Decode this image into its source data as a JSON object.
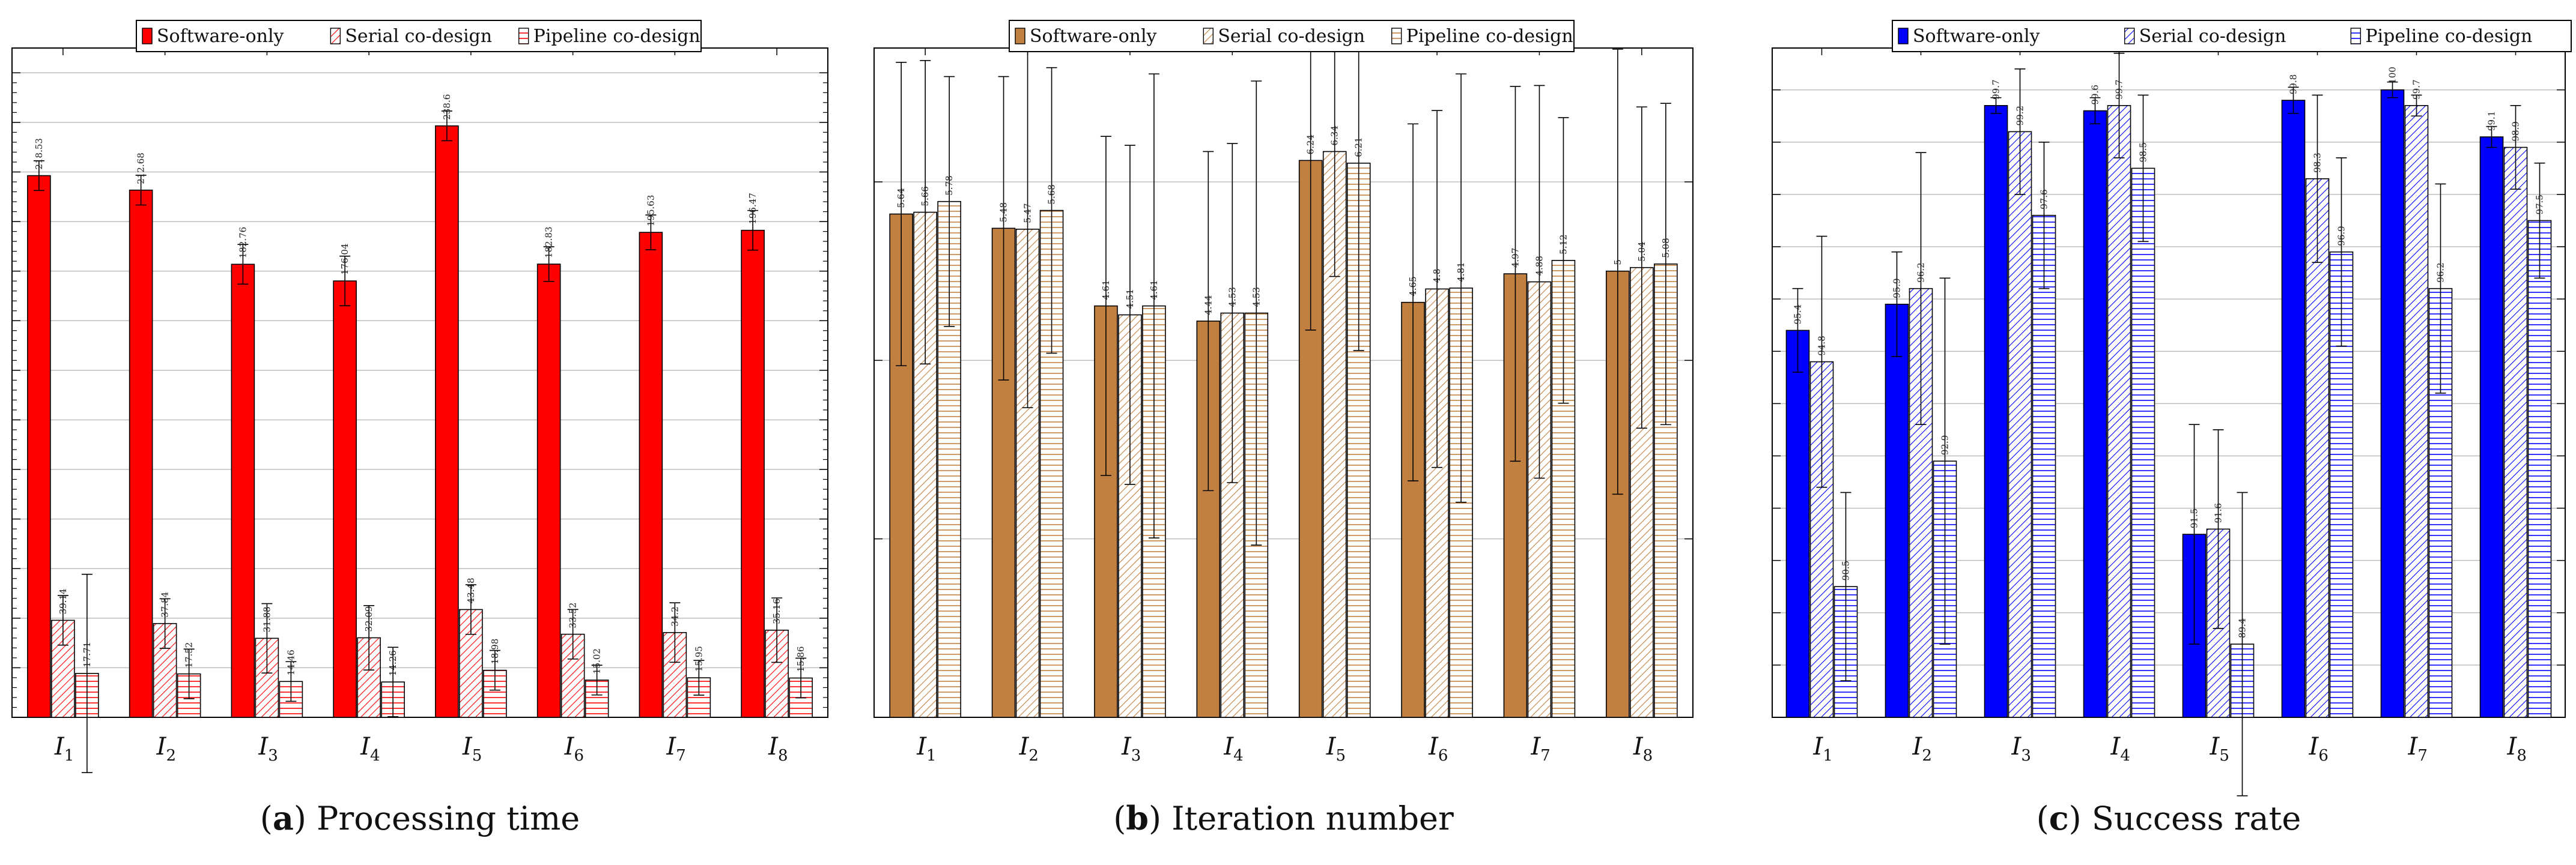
{
  "chart_data": [
    {
      "type": "bar",
      "panel": "a",
      "caption_letter": "a",
      "caption_text": "Processing time",
      "categories": [
        "I",
        "I",
        "I",
        "I",
        "I",
        "I",
        "I",
        "I"
      ],
      "category_subscripts": [
        "1",
        "2",
        "3",
        "4",
        "5",
        "6",
        "7",
        "8"
      ],
      "ylim": [
        0,
        270
      ],
      "grid_ticks": [
        0,
        20,
        40,
        60,
        80,
        100,
        120,
        140,
        160,
        180,
        200,
        220,
        240,
        260
      ],
      "minor_ticks_per_major": 5,
      "legend_position": "top-center",
      "series": [
        {
          "name": "Software-only",
          "pattern": "solid",
          "color": "#ff0000",
          "values": [
            218.53,
            212.68,
            182.76,
            176.04,
            238.6,
            182.83,
            195.63,
            196.47
          ],
          "labels": [
            "218.53",
            "212.68",
            "182.76",
            "176.04",
            "238.6",
            "182.83",
            "195.63",
            "196.47"
          ],
          "errors": [
            6,
            6,
            8,
            10,
            6,
            7,
            7,
            8
          ]
        },
        {
          "name": "Serial co-design",
          "pattern": "diagonal",
          "color": "#ff0000",
          "values": [
            39.14,
            37.84,
            31.88,
            32.09,
            43.48,
            33.52,
            34.2,
            35.16
          ],
          "labels": [
            "39.14",
            "37.84",
            "31.88",
            "32.09",
            "43.48",
            "33.52",
            "34.2",
            "35.16"
          ],
          "errors": [
            10,
            10,
            14,
            13,
            10,
            10,
            12,
            13
          ]
        },
        {
          "name": "Pipeline co-design",
          "pattern": "horizontal",
          "color": "#ff0000",
          "values": [
            17.71,
            17.52,
            14.46,
            14.26,
            18.98,
            15.02,
            15.95,
            15.86
          ],
          "labels": [
            "17.71",
            "17.52",
            "14.46",
            "14.26",
            "18.98",
            "15.02",
            "15.95",
            "15.86"
          ],
          "errors": [
            40,
            10,
            8,
            14,
            8,
            6,
            7,
            8
          ]
        }
      ]
    },
    {
      "type": "bar",
      "panel": "b",
      "caption_letter": "b",
      "caption_text": "Iteration number",
      "categories": [
        "I",
        "I",
        "I",
        "I",
        "I",
        "I",
        "I",
        "I"
      ],
      "category_subscripts": [
        "1",
        "2",
        "3",
        "4",
        "5",
        "6",
        "7",
        "8"
      ],
      "ylim": [
        0,
        7.5
      ],
      "grid_ticks": [
        0,
        2,
        4,
        6
      ],
      "minor_ticks_per_major": 0,
      "legend_position": "top-center",
      "series": [
        {
          "name": "Software-only",
          "pattern": "solid",
          "color": "#c1803f",
          "values": [
            5.64,
            5.48,
            4.61,
            4.44,
            6.24,
            4.65,
            4.97,
            5.0
          ],
          "labels": [
            "5.64",
            "5.48",
            "4.61",
            "4.44",
            "6.24",
            "4.65",
            "4.97",
            "5"
          ],
          "errors": [
            1.7,
            1.7,
            1.9,
            1.9,
            1.9,
            2.0,
            2.1,
            2.5
          ]
        },
        {
          "name": "Serial co-design",
          "pattern": "diagonal",
          "color": "#c1803f",
          "values": [
            5.66,
            5.47,
            4.51,
            4.53,
            6.34,
            4.8,
            4.88,
            5.04
          ],
          "labels": [
            "5.66",
            "5.47",
            "4.51",
            "4.53",
            "6.34",
            "4.8",
            "4.88",
            "5.04"
          ],
          "errors": [
            1.7,
            2.0,
            1.9,
            1.9,
            1.4,
            2.0,
            2.2,
            1.8
          ]
        },
        {
          "name": "Pipeline co-design",
          "pattern": "horizontal",
          "color": "#c1803f",
          "values": [
            5.78,
            5.68,
            4.61,
            4.53,
            6.21,
            4.81,
            5.12,
            5.08
          ],
          "labels": [
            "5.78",
            "5.68",
            "4.61",
            "4.53",
            "6.21",
            "4.81",
            "5.12",
            "5.08"
          ],
          "errors": [
            1.4,
            1.6,
            2.6,
            2.6,
            2.1,
            2.4,
            1.6,
            1.8
          ]
        }
      ]
    },
    {
      "type": "bar",
      "panel": "c",
      "caption_letter": "c",
      "caption_text": "Success rate",
      "categories": [
        "I",
        "I",
        "I",
        "I",
        "I",
        "I",
        "I",
        "I"
      ],
      "category_subscripts": [
        "1",
        "2",
        "3",
        "4",
        "5",
        "6",
        "7",
        "8"
      ],
      "ylim": [
        88,
        100.8
      ],
      "grid_ticks": [
        88,
        89,
        90,
        91,
        92,
        93,
        94,
        95,
        96,
        97,
        98,
        99,
        100
      ],
      "minor_ticks_per_major": 0,
      "legend_position": "top-center",
      "series": [
        {
          "name": "Software-only",
          "pattern": "solid",
          "color": "#0000ff",
          "values": [
            95.4,
            95.9,
            99.7,
            99.6,
            91.5,
            99.8,
            100,
            99.1
          ],
          "labels": [
            "95.4",
            "95.9",
            "99.7",
            "99.6",
            "91.5",
            "99.8",
            "100",
            "99.1"
          ],
          "errors": [
            0.8,
            1.0,
            0.15,
            0.25,
            2.1,
            0.25,
            0.15,
            0.2
          ]
        },
        {
          "name": "Serial co-design",
          "pattern": "diagonal",
          "color": "#0000ff",
          "values": [
            94.8,
            96.2,
            99.2,
            99.7,
            91.6,
            98.3,
            99.7,
            98.9
          ],
          "labels": [
            "94.8",
            "96.2",
            "99.2",
            "99.7",
            "91.6",
            "98.3",
            "99.7",
            "98.9"
          ],
          "errors": [
            2.4,
            2.6,
            1.2,
            1.0,
            1.9,
            1.6,
            0.2,
            0.8
          ]
        },
        {
          "name": "Pipeline co-design",
          "pattern": "horizontal",
          "color": "#0000ff",
          "values": [
            90.5,
            92.9,
            97.6,
            98.5,
            89.4,
            96.9,
            96.2,
            97.5
          ],
          "labels": [
            "90.5",
            "92.9",
            "97.6",
            "98.5",
            "89.4",
            "96.9",
            "96.2",
            "97.5"
          ],
          "errors": [
            1.8,
            3.5,
            1.4,
            1.4,
            2.9,
            1.8,
            2.0,
            1.1
          ]
        }
      ]
    }
  ]
}
